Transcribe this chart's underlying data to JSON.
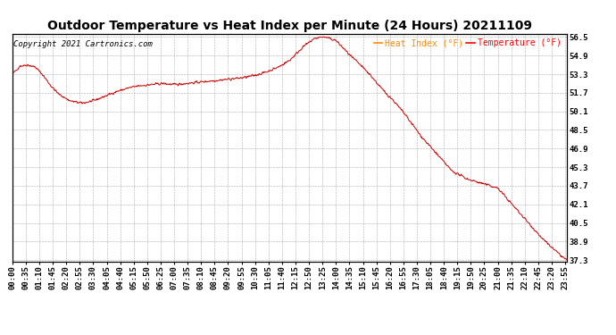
{
  "title": "Outdoor Temperature vs Heat Index per Minute (24 Hours) 20211109",
  "copyright": "Copyright 2021 Cartronics.com",
  "legend_heat": "Heat Index (°F)",
  "legend_temp": "Temperature (°F)",
  "heat_index_color": "#ff8800",
  "temp_color": "#ff0000",
  "line_color": "#cc0000",
  "background_color": "#ffffff",
  "grid_color": "#999999",
  "yticks": [
    37.3,
    38.9,
    40.5,
    42.1,
    43.7,
    45.3,
    46.9,
    48.5,
    50.1,
    51.7,
    53.3,
    54.9,
    56.5
  ],
  "ymin": 37.3,
  "ymax": 56.5,
  "title_fontsize": 10,
  "copyright_fontsize": 6.5,
  "tick_fontsize": 6.5,
  "legend_fontsize": 7
}
